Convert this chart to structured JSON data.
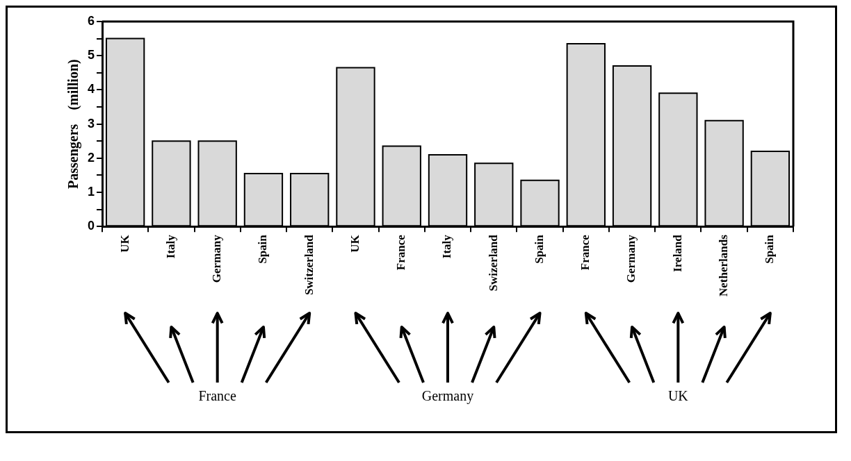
{
  "chart_data": {
    "type": "bar",
    "ylabel": "Passengers    (million)",
    "categories": [
      "UK",
      "Italy",
      "Germany",
      "Spain",
      "Switzerland",
      "UK",
      "France",
      "Italy",
      "Swizerland",
      "Spain",
      "France",
      "Germany",
      "Ireland",
      "Netherlands",
      "Spain"
    ],
    "values": [
      5.5,
      2.5,
      2.5,
      1.55,
      1.55,
      4.65,
      2.35,
      2.1,
      1.85,
      1.35,
      5.35,
      4.7,
      3.9,
      3.1,
      2.2
    ],
    "color": "#d9d9d9",
    "ylim": [
      0,
      6
    ],
    "yticks": [
      0,
      {
        "value": 0.5,
        "label": null
      },
      1,
      {
        "value": 1.5,
        "label": null
      },
      2,
      {
        "value": 2.5,
        "label": null
      },
      3,
      {
        "value": 3.5,
        "label": null
      },
      4,
      {
        "value": 4.5,
        "label": null
      },
      5,
      {
        "value": 5.5,
        "label": null
      },
      6
    ],
    "grid": false,
    "legend": false,
    "annotations": [
      "France",
      "Germany",
      "UK"
    ]
  }
}
